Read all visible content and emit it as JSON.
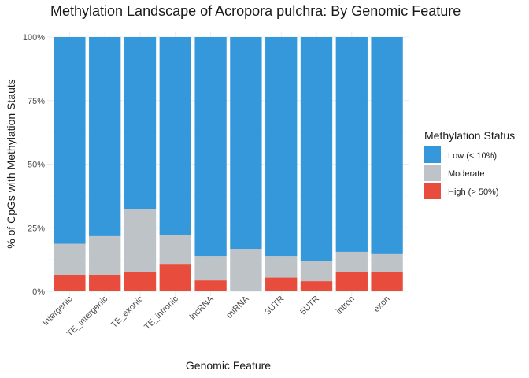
{
  "chart_data": {
    "type": "bar",
    "stacked": true,
    "title": "Methylation Landscape of Acropora pulchra: By Genomic Feature",
    "xlabel": "Genomic Feature",
    "ylabel": "% of CpGs with Methylation Stauts",
    "ylim": [
      0,
      1
    ],
    "yticks": [
      0,
      0.25,
      0.5,
      0.75,
      1.0
    ],
    "ytick_labels": [
      "0%",
      "25%",
      "50%",
      "75%",
      "100%"
    ],
    "categories": [
      "Intergenic",
      "TE_intergenic",
      "TE_exonic",
      "TE_intronic",
      "lncRNA",
      "miRNA",
      "3UTR",
      "5UTR",
      "intron",
      "exon"
    ],
    "series": [
      {
        "name": "High (> 50%)",
        "color": "#e74c3c",
        "values": [
          0.065,
          0.065,
          0.077,
          0.108,
          0.043,
          0.0,
          0.054,
          0.04,
          0.075,
          0.077
        ]
      },
      {
        "name": "Moderate",
        "color": "#bdc3c7",
        "values": [
          0.122,
          0.152,
          0.246,
          0.113,
          0.096,
          0.167,
          0.085,
          0.08,
          0.08,
          0.072
        ]
      },
      {
        "name": "Low (< 10%)",
        "color": "#3498db",
        "values": [
          0.813,
          0.783,
          0.677,
          0.779,
          0.861,
          0.833,
          0.861,
          0.88,
          0.845,
          0.851
        ]
      }
    ],
    "legend": {
      "title": "Methylation Status",
      "position": "right",
      "entries": [
        "Low (< 10%)",
        "Moderate",
        "High (> 50%)"
      ]
    }
  }
}
